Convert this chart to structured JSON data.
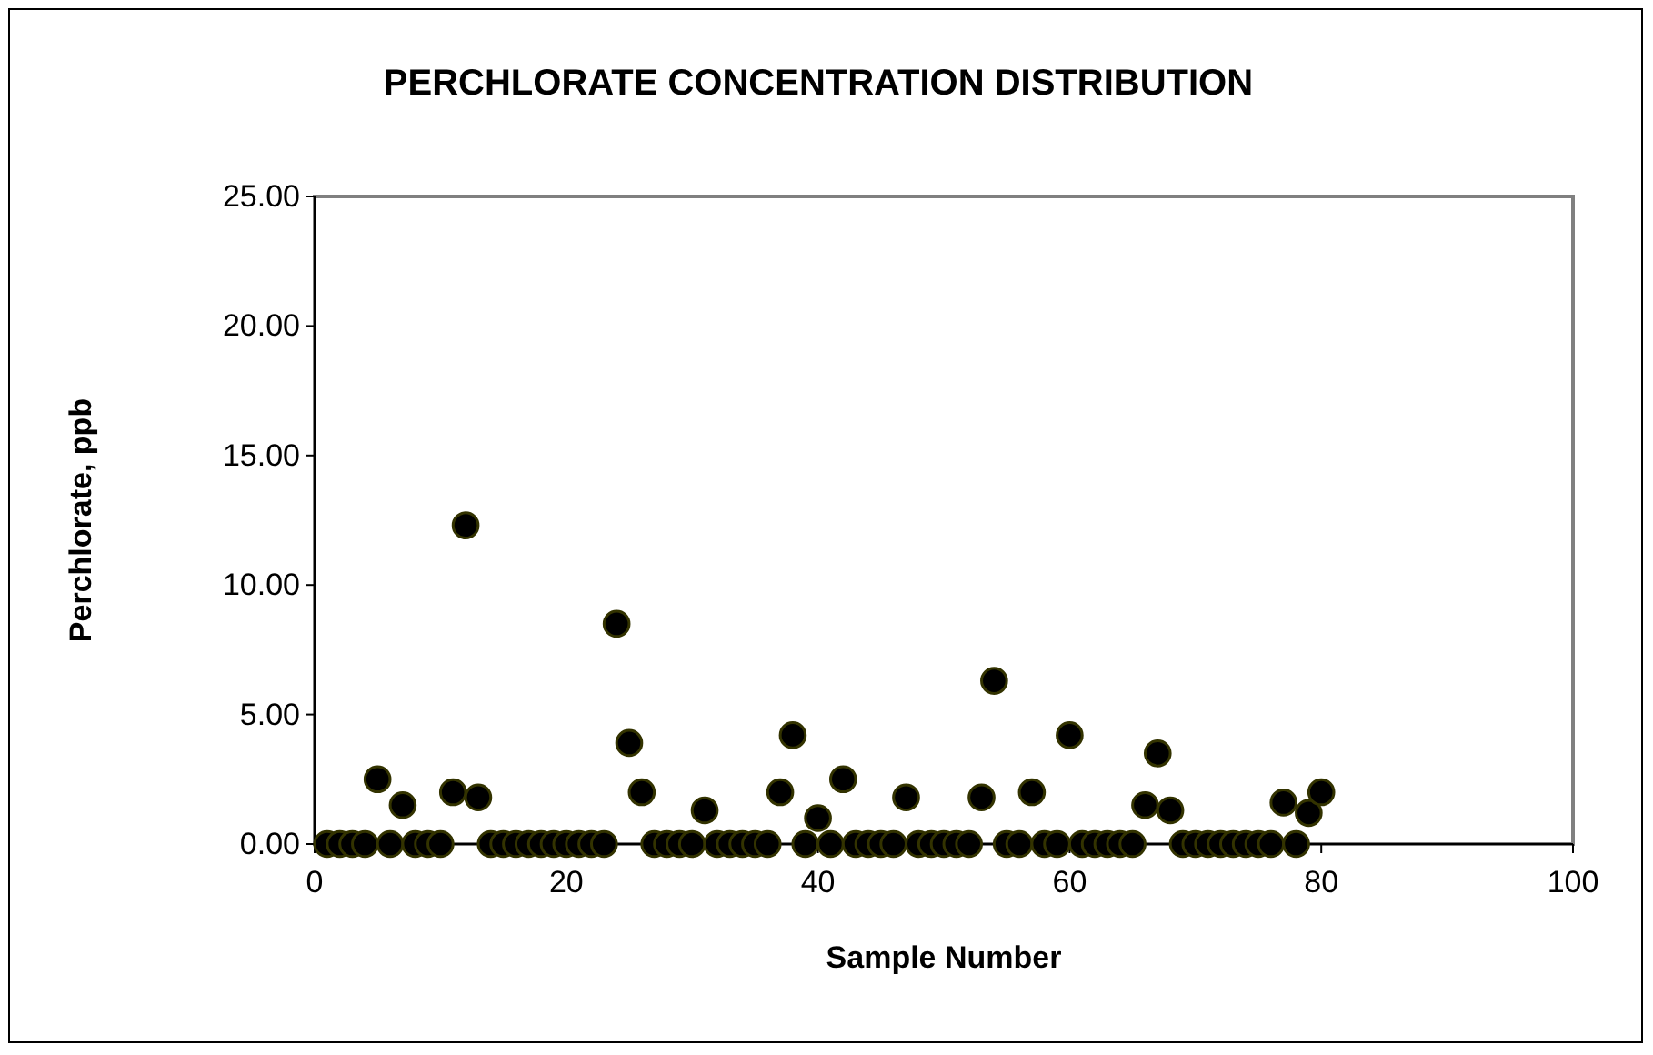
{
  "chart_data": {
    "type": "scatter",
    "title": "PERCHLORATE CONCENTRATION DISTRIBUTION",
    "xlabel": "Sample Number",
    "ylabel": "Perchlorate, ppb",
    "x": [
      1,
      2,
      3,
      4,
      5,
      6,
      7,
      8,
      9,
      10,
      11,
      12,
      13,
      14,
      15,
      16,
      17,
      18,
      19,
      20,
      21,
      22,
      23,
      24,
      25,
      26,
      27,
      28,
      29,
      30,
      31,
      32,
      33,
      34,
      35,
      36,
      37,
      38,
      39,
      40,
      41,
      42,
      43,
      44,
      45,
      46,
      47,
      48,
      49,
      50,
      51,
      52,
      53,
      54,
      55,
      56,
      57,
      58,
      59,
      60,
      61,
      62,
      63,
      64,
      65,
      66,
      67,
      68,
      69,
      70,
      71,
      72,
      73,
      74,
      75,
      76,
      77,
      78,
      79,
      80
    ],
    "series": [
      {
        "color": "#000000",
        "values": [
          0,
          0,
          0,
          0,
          2.5,
          0,
          1.5,
          0,
          0,
          0,
          2.0,
          12.3,
          1.8,
          0,
          0,
          0,
          0,
          0,
          0,
          0,
          0,
          0,
          0,
          8.5,
          3.9,
          2.0,
          0,
          0,
          0,
          0,
          1.3,
          0,
          0,
          0,
          0,
          0,
          2.0,
          4.2,
          0,
          1.0,
          0,
          2.5,
          0,
          0,
          0,
          0,
          1.8,
          0,
          0,
          0,
          0,
          0,
          1.8,
          6.3,
          0,
          0,
          2.0,
          0,
          0,
          4.2,
          0,
          0,
          0,
          0,
          0,
          1.5,
          3.5,
          1.3,
          0,
          0,
          0,
          0,
          0,
          0,
          0,
          0,
          1.6,
          0,
          1.2,
          2.0
        ]
      }
    ],
    "xlim": [
      0,
      100
    ],
    "xticks": [
      0,
      20,
      40,
      60,
      80,
      100
    ],
    "ylim": [
      0,
      25
    ],
    "yticks": [
      {
        "value": 0,
        "label": "0.00"
      },
      {
        "value": 5,
        "label": "5.00"
      },
      {
        "value": 10,
        "label": "10.00"
      },
      {
        "value": 15,
        "label": "15.00"
      },
      {
        "value": 20,
        "label": "20.00"
      },
      {
        "value": 25,
        "label": "25.00"
      }
    ],
    "marker": "circle",
    "grid": false
  }
}
